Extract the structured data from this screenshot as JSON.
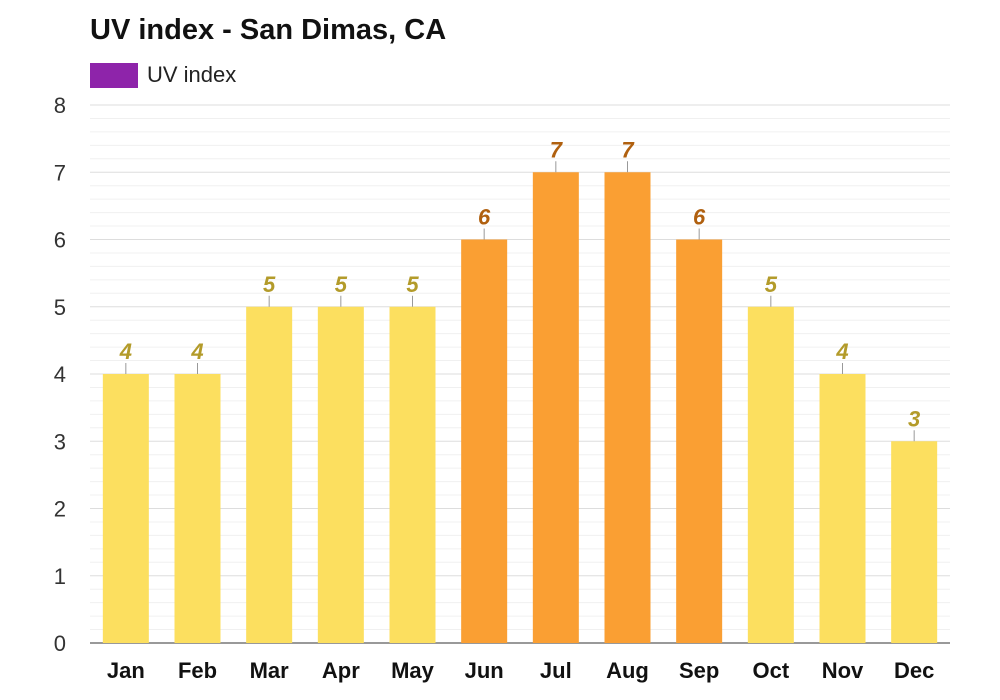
{
  "chart_data": {
    "type": "bar",
    "title": "UV index - San Dimas, CA",
    "xlabel": "",
    "ylabel": "",
    "categories": [
      "Jan",
      "Feb",
      "Mar",
      "Apr",
      "May",
      "Jun",
      "Jul",
      "Aug",
      "Sep",
      "Oct",
      "Nov",
      "Dec"
    ],
    "series": [
      {
        "name": "UV index",
        "values": [
          4,
          4,
          5,
          5,
          5,
          6,
          7,
          7,
          6,
          5,
          4,
          3
        ]
      }
    ],
    "ylim": [
      0,
      8
    ],
    "yticks": [
      0,
      1,
      2,
      3,
      4,
      5,
      6,
      7,
      8
    ],
    "grid": true,
    "legend_position": "top-left",
    "colors": {
      "legend_swatch": "#8e24aa",
      "bar_moderate": "#fcdf5f",
      "bar_high": "#fa9f33",
      "label_moderate": "#b39b2a",
      "label_high": "#b0600f",
      "grid_major": "#dddddd",
      "grid_minor": "#f0f0f0",
      "axis": "#333333"
    },
    "high_threshold": 6
  }
}
